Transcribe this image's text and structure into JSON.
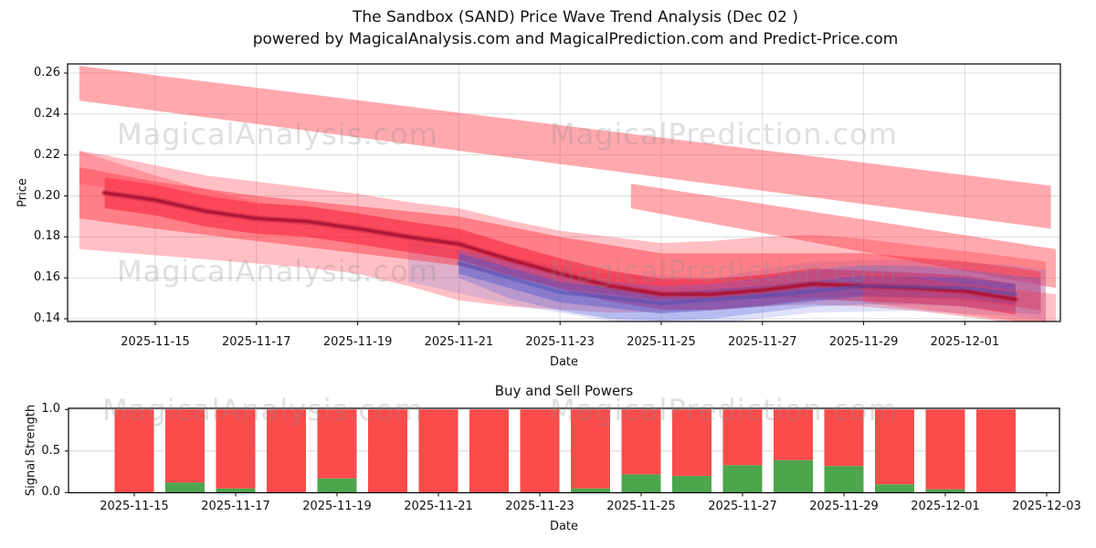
{
  "title": {
    "line1": "The Sandbox (SAND) Price Wave Trend Analysis (Dec 02 )",
    "line2": "powered by MagicalAnalysis.com and MagicalPrediction.com and Predict-Price.com"
  },
  "watermarks": {
    "left": "MagicalAnalysis.com",
    "right": "MagicalPrediction.com"
  },
  "chart_data": [
    {
      "type": "area",
      "name": "price-wave-trend",
      "xlabel": "Date",
      "ylabel": "Price",
      "grid": true,
      "ylim": [
        0.1375,
        0.2645
      ],
      "y_ticks": [
        "0.26",
        "0.24",
        "0.22",
        "0.20",
        "0.18",
        "0.16",
        "0.14"
      ],
      "x_ticks": [
        "2025-11-15",
        "2025-11-17",
        "2025-11-19",
        "2025-11-21",
        "2025-11-23",
        "2025-11-25",
        "2025-11-27",
        "2025-11-29",
        "2025-12-01"
      ],
      "x_unit": "days_since_2025-11-14",
      "dates": [
        "2025-11-14",
        "2025-11-15",
        "2025-11-16",
        "2025-11-17",
        "2025-11-18",
        "2025-11-19",
        "2025-11-20",
        "2025-11-21",
        "2025-11-22",
        "2025-11-23",
        "2025-11-24",
        "2025-11-25",
        "2025-11-26",
        "2025-11-27",
        "2025-11-28",
        "2025-11-29",
        "2025-11-30",
        "2025-12-01",
        "2025-12-02"
      ],
      "bands": [
        {
          "name": "upper-trend-band-a",
          "color": "#ff1e2d",
          "opacity": 0.38,
          "x": [
            -0.5,
            18.7
          ],
          "upper": [
            0.2635,
            0.205
          ],
          "lower": [
            0.2465,
            0.184
          ]
        },
        {
          "name": "upper-trend-band-b",
          "color": "#ff1e2d",
          "opacity": 0.38,
          "x": [
            10.4,
            18.8
          ],
          "upper": [
            0.206,
            0.174
          ],
          "lower": [
            0.194,
            0.155
          ]
        },
        {
          "name": "price-envelope-outer",
          "color": "#ff1e2d",
          "opacity": 0.28,
          "x": [
            -0.5,
            0,
            1,
            2,
            3,
            4,
            5,
            6,
            7,
            8,
            9,
            10,
            11,
            12,
            13,
            14,
            15,
            16,
            17,
            18,
            18.6
          ],
          "upper": [
            0.222,
            0.22,
            0.215,
            0.21,
            0.207,
            0.204,
            0.201,
            0.197,
            0.194,
            0.188,
            0.183,
            0.18,
            0.177,
            0.178,
            0.18,
            0.181,
            0.179,
            0.176,
            0.173,
            0.17,
            0.168
          ],
          "lower": [
            0.174,
            0.173,
            0.171,
            0.169,
            0.167,
            0.165,
            0.162,
            0.156,
            0.149,
            0.146,
            0.1445,
            0.143,
            0.1435,
            0.144,
            0.146,
            0.147,
            0.146,
            0.144,
            0.141,
            0.138,
            0.137
          ]
        },
        {
          "name": "blue-envelope-wide",
          "color": "#6470e6",
          "opacity": 0.2,
          "x": [
            6,
            8,
            10,
            12,
            14,
            16,
            18,
            18.6
          ],
          "upper": [
            0.178,
            0.17,
            0.162,
            0.16,
            0.168,
            0.169,
            0.166,
            0.164
          ],
          "lower": [
            0.158,
            0.147,
            0.139,
            0.1375,
            0.143,
            0.144,
            0.141,
            0.139
          ]
        },
        {
          "name": "price-envelope-mid",
          "color": "#ff1e2d",
          "opacity": 0.4,
          "x": [
            -0.5,
            1,
            3,
            5,
            7,
            9,
            11,
            13,
            15,
            17,
            18,
            18.5
          ],
          "upper": [
            0.214,
            0.207,
            0.2,
            0.195,
            0.19,
            0.18,
            0.172,
            0.172,
            0.172,
            0.168,
            0.165,
            0.163
          ],
          "lower": [
            0.189,
            0.184,
            0.178,
            0.172,
            0.166,
            0.155,
            0.149,
            0.15,
            0.151,
            0.149,
            0.146,
            0.144
          ]
        },
        {
          "name": "price-envelope-inner",
          "color": "#f51430",
          "opacity": 0.5,
          "x": [
            0,
            1,
            2,
            3,
            4,
            5,
            6,
            7,
            8,
            9,
            10,
            11,
            12,
            13,
            14,
            15,
            16,
            17,
            18
          ],
          "upper": [
            0.209,
            0.2055,
            0.2,
            0.1965,
            0.195,
            0.1915,
            0.1875,
            0.184,
            0.1765,
            0.1695,
            0.1635,
            0.1595,
            0.1595,
            0.1615,
            0.1645,
            0.1635,
            0.1625,
            0.161,
            0.157
          ],
          "lower": [
            0.194,
            0.1905,
            0.185,
            0.1815,
            0.18,
            0.1765,
            0.1725,
            0.169,
            0.1615,
            0.1545,
            0.1485,
            0.1445,
            0.1445,
            0.1465,
            0.1495,
            0.1485,
            0.1475,
            0.146,
            0.142
          ]
        },
        {
          "name": "blue-envelope",
          "color": "#5a64dc",
          "opacity": 0.3,
          "x": [
            7,
            8,
            9,
            10,
            11,
            12,
            13,
            14,
            15,
            16,
            17,
            18,
            18.5
          ],
          "upper": [
            0.174,
            0.168,
            0.162,
            0.158,
            0.156,
            0.157,
            0.16,
            0.164,
            0.166,
            0.166,
            0.164,
            0.161,
            0.16
          ],
          "lower": [
            0.16,
            0.15,
            0.144,
            0.14,
            0.139,
            0.14,
            0.143,
            0.146,
            0.147,
            0.147,
            0.146,
            0.143,
            0.142
          ]
        },
        {
          "name": "blue-core-band",
          "color": "#4650c8",
          "opacity": 0.4,
          "x": [
            7,
            9,
            11,
            13,
            15,
            17,
            18
          ],
          "upper": [
            0.172,
            0.158,
            0.1525,
            0.156,
            0.161,
            0.16,
            0.157
          ],
          "lower": [
            0.162,
            0.148,
            0.1425,
            0.146,
            0.151,
            0.15,
            0.147
          ]
        },
        {
          "name": "left-upper-wedge",
          "color": "#ff4656",
          "opacity": 0.35,
          "x": [
            -0.5,
            0,
            1,
            2,
            3
          ],
          "upper": [
            0.222,
            0.218,
            0.21,
            0.203,
            0.197
          ],
          "lower": [
            0.206,
            0.204,
            0.199,
            0.1945,
            0.191
          ]
        },
        {
          "name": "bottom-right-band",
          "color": "#ff3242",
          "opacity": 0.3,
          "x": [
            15,
            16,
            17,
            18,
            18.8
          ],
          "upper": [
            0.163,
            0.16,
            0.157,
            0.154,
            0.152
          ],
          "lower": [
            0.148,
            0.145,
            0.142,
            0.139,
            0.136
          ]
        }
      ],
      "lines": [
        {
          "name": "price-core-glow",
          "color": "#c82846",
          "width": 7,
          "opacity": 0.5,
          "x": [
            0,
            1,
            2,
            3,
            4,
            5,
            6,
            7,
            8,
            9,
            10,
            11,
            12,
            13,
            14,
            15,
            16,
            17,
            18
          ],
          "values": [
            0.2015,
            0.198,
            0.1925,
            0.189,
            0.1875,
            0.184,
            0.18,
            0.1765,
            0.169,
            0.162,
            0.156,
            0.152,
            0.152,
            0.154,
            0.157,
            0.156,
            0.155,
            0.1535,
            0.1495
          ]
        },
        {
          "name": "price-core",
          "color": "#a81232",
          "width": 3.5,
          "opacity": 0.85,
          "x": [
            0,
            1,
            2,
            3,
            4,
            5,
            6,
            7,
            8,
            9,
            10,
            11,
            12,
            13,
            14,
            15,
            16,
            17,
            18
          ],
          "values": [
            0.2015,
            0.198,
            0.1925,
            0.189,
            0.1875,
            0.184,
            0.18,
            0.1765,
            0.169,
            0.162,
            0.156,
            0.152,
            0.152,
            0.154,
            0.157,
            0.156,
            0.155,
            0.1535,
            0.1495
          ]
        },
        {
          "name": "blue-trend-core",
          "color": "#5050b4",
          "width": 4,
          "opacity": 0.55,
          "x": [
            7,
            9,
            11,
            13,
            15,
            17,
            18
          ],
          "values": [
            0.167,
            0.153,
            0.1475,
            0.151,
            0.156,
            0.155,
            0.152
          ]
        }
      ]
    },
    {
      "type": "bar",
      "name": "buy-sell-powers",
      "title": "Buy and Sell Powers",
      "xlabel": "Date",
      "ylabel": "Signal Strength",
      "stacked": true,
      "grid": true,
      "ylim": [
        0,
        1.02
      ],
      "y_ticks": [
        "1.0",
        "0.5",
        "0.0"
      ],
      "x_ticks": [
        "2025-11-15",
        "2025-11-17",
        "2025-11-19",
        "2025-11-21",
        "2025-11-23",
        "2025-11-25",
        "2025-11-27",
        "2025-11-29",
        "2025-12-01",
        "2025-12-03"
      ],
      "dates": [
        "2025-11-15",
        "2025-11-16",
        "2025-11-17",
        "2025-11-18",
        "2025-11-19",
        "2025-11-20",
        "2025-11-21",
        "2025-11-22",
        "2025-11-23",
        "2025-11-24",
        "2025-11-25",
        "2025-11-26",
        "2025-11-27",
        "2025-11-28",
        "2025-11-29",
        "2025-11-30",
        "2025-12-01",
        "2025-12-02"
      ],
      "series": [
        {
          "name": "buy-power",
          "color": "#4ca64c",
          "values": [
            0.0,
            0.12,
            0.05,
            0.0,
            0.17,
            0.0,
            0.0,
            0.0,
            0.0,
            0.05,
            0.22,
            0.2,
            0.33,
            0.39,
            0.32,
            0.1,
            0.04,
            0.0
          ]
        },
        {
          "name": "sell-power",
          "color": "#fb4b4b",
          "values": [
            1.0,
            0.88,
            0.95,
            1.0,
            0.83,
            1.0,
            1.0,
            1.0,
            1.0,
            0.95,
            0.78,
            0.8,
            0.67,
            0.61,
            0.68,
            0.9,
            0.96,
            1.0
          ]
        }
      ]
    }
  ],
  "style": {
    "grid_color": "#dcdcdc",
    "spine_color": "#000000",
    "watermark_color": "#8a8a8a"
  }
}
